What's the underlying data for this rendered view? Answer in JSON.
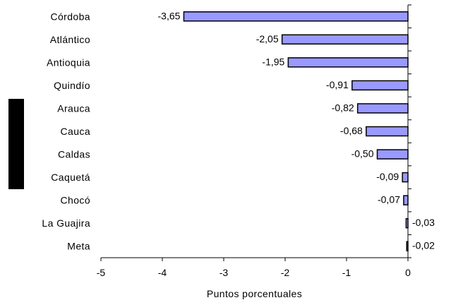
{
  "chart_data": {
    "type": "bar",
    "orientation": "horizontal",
    "categories": [
      "Córdoba",
      "Atlántico",
      "Antioquia",
      "Quindío",
      "Arauca",
      "Cauca",
      "Caldas",
      "Caquetá",
      "Chocó",
      "La Guajira",
      "Meta"
    ],
    "values": [
      -3.65,
      -2.05,
      -1.95,
      -0.91,
      -0.82,
      -0.68,
      -0.5,
      -0.09,
      -0.07,
      -0.03,
      -0.02
    ],
    "value_labels": [
      "-3,65",
      "-2,05",
      "-1,95",
      "-0,91",
      "-0,82",
      "-0,68",
      "-0,50",
      "-0,09",
      "-0,07",
      "-0,03",
      "-0,02"
    ],
    "xticks": [
      -5,
      -4,
      -3,
      -2,
      -1,
      0
    ],
    "xtick_labels": [
      "-5",
      "-4",
      "-3",
      "-2",
      "-1",
      "0"
    ],
    "xlim": [
      -5,
      0
    ],
    "xlabel": "Puntos porcentuales",
    "title": "",
    "grid": false,
    "legend": "none",
    "colors": {
      "bar_fill": "#9999ff",
      "bar_stroke": "#000000",
      "axis": "#000000",
      "side_block": "#000000"
    }
  }
}
